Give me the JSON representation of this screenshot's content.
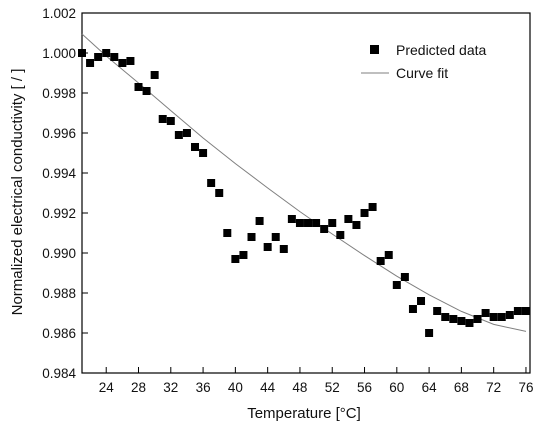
{
  "chart_data": {
    "type": "scatter",
    "title": "",
    "xlabel": "Temperature [°C]",
    "ylabel": "Normalized electrical conductivity [ / ]",
    "xlim": [
      21,
      76.5
    ],
    "ylim": [
      0.984,
      1.002
    ],
    "xticks": [
      24,
      28,
      32,
      36,
      40,
      44,
      48,
      52,
      56,
      60,
      64,
      68,
      72,
      76
    ],
    "xtick_labels": [
      "24",
      "28",
      "32",
      "36",
      "40",
      "44",
      "48",
      "52",
      "56",
      "60",
      "64",
      "68",
      "72",
      "76"
    ],
    "yticks": [
      0.984,
      0.986,
      0.988,
      0.99,
      0.992,
      0.994,
      0.996,
      0.998,
      1.0,
      1.002
    ],
    "ytick_labels": [
      "0.984",
      "0.986",
      "0.988",
      "0.990",
      "0.992",
      "0.994",
      "0.996",
      "0.998",
      "1.000",
      "1.002"
    ],
    "grid": false,
    "legend_position": "top-right",
    "series": [
      {
        "name": "Predicted data",
        "kind": "scatter",
        "marker": "square",
        "color": "#000000",
        "x": [
          21,
          22,
          23,
          24,
          25,
          26,
          27,
          28,
          29,
          30,
          31,
          32,
          33,
          34,
          35,
          36,
          37,
          38,
          39,
          40,
          41,
          42,
          43,
          44,
          45,
          46,
          47,
          48,
          49,
          50,
          51,
          52,
          53,
          54,
          55,
          56,
          57,
          58,
          59,
          60,
          61,
          62,
          63,
          64,
          65,
          66,
          67,
          68,
          69,
          70,
          71,
          72,
          73,
          74,
          75,
          76
        ],
        "y": [
          1.0,
          0.9995,
          0.9998,
          1.0,
          0.9998,
          0.9995,
          0.9996,
          0.9983,
          0.9981,
          0.9989,
          0.9967,
          0.9966,
          0.9959,
          0.996,
          0.9953,
          0.995,
          0.9935,
          0.993,
          0.991,
          0.9897,
          0.9899,
          0.9908,
          0.9916,
          0.9903,
          0.9908,
          0.9902,
          0.9917,
          0.9915,
          0.9915,
          0.9915,
          0.9912,
          0.9915,
          0.9909,
          0.9917,
          0.9914,
          0.992,
          0.9923,
          0.9896,
          0.9899,
          0.9884,
          0.9888,
          0.9872,
          0.9876,
          0.986,
          0.9871,
          0.9868,
          0.9867,
          0.9866,
          0.9865,
          0.9867,
          0.987,
          0.9868,
          0.9868,
          0.9869,
          0.9871,
          0.9871
        ]
      },
      {
        "name": "Curve fit",
        "kind": "line",
        "color": "#7f7f7f",
        "x": [
          21,
          24,
          28,
          32,
          36,
          40,
          44,
          48,
          52,
          56,
          60,
          64,
          68,
          72,
          76
        ],
        "y": [
          1.00095,
          0.99985,
          0.9985,
          0.99712,
          0.99575,
          0.99447,
          0.99325,
          0.99207,
          0.99095,
          0.98987,
          0.98884,
          0.98791,
          0.98708,
          0.98643,
          0.98608
        ]
      }
    ]
  }
}
